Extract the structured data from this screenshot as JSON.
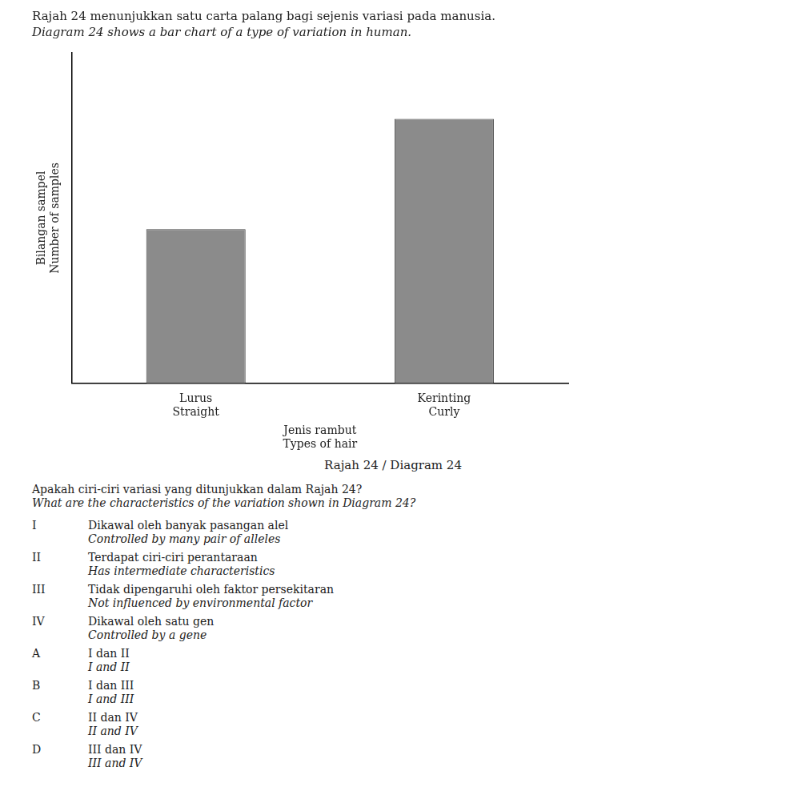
{
  "chart_data": {
    "type": "bar",
    "title": "Rajah 24 menunjukkan satu carta palang bagi sejenis variasi pada manusia.",
    "subtitle": "Diagram 24 shows a bar chart of a type of variation in human.",
    "ylabel": [
      "Bilangan sampel",
      "Number of samples"
    ],
    "xlabel": [
      "Jenis rambut",
      "Types of hair"
    ],
    "categories": [
      [
        "Lurus",
        "Straight"
      ],
      [
        "Kerinting",
        "Curly"
      ]
    ],
    "values": [
      3.5,
      6.0
    ],
    "color": "#8B8B8B",
    "ylim": [
      0,
      7.5
    ],
    "grid": false,
    "tick_labels": "x",
    "annotations": [
      [
        "Rajah 24 / Diagram 24"
      ],
      [
        "Apakah ciri-ciri variasi yang ditunjukkan dalam Rajah 24?",
        "What are the characteristics of the variation shown in Diagram 24?"
      ],
      [
        "I",
        "Dikawal oleh banyak pasangan alel",
        "Controlled by many pair of alleles"
      ],
      [
        "II",
        "Terdapat ciri-ciri perantaraan",
        "Has intermediate characteristics"
      ],
      [
        "III",
        "Tidak dipengaruhi oleh faktor persekitaran",
        "Not influenced by environmental factor"
      ],
      [
        "IV",
        "Dikawal oleh satu gen",
        "Controlled by a gene"
      ],
      [
        "A",
        "I dan II",
        "I and II"
      ],
      [
        "B",
        "I dan III",
        "I and III"
      ],
      [
        "C",
        "II dan IV",
        "II and IV"
      ],
      [
        "D",
        "III dan IV",
        "III and IV"
      ]
    ]
  }
}
